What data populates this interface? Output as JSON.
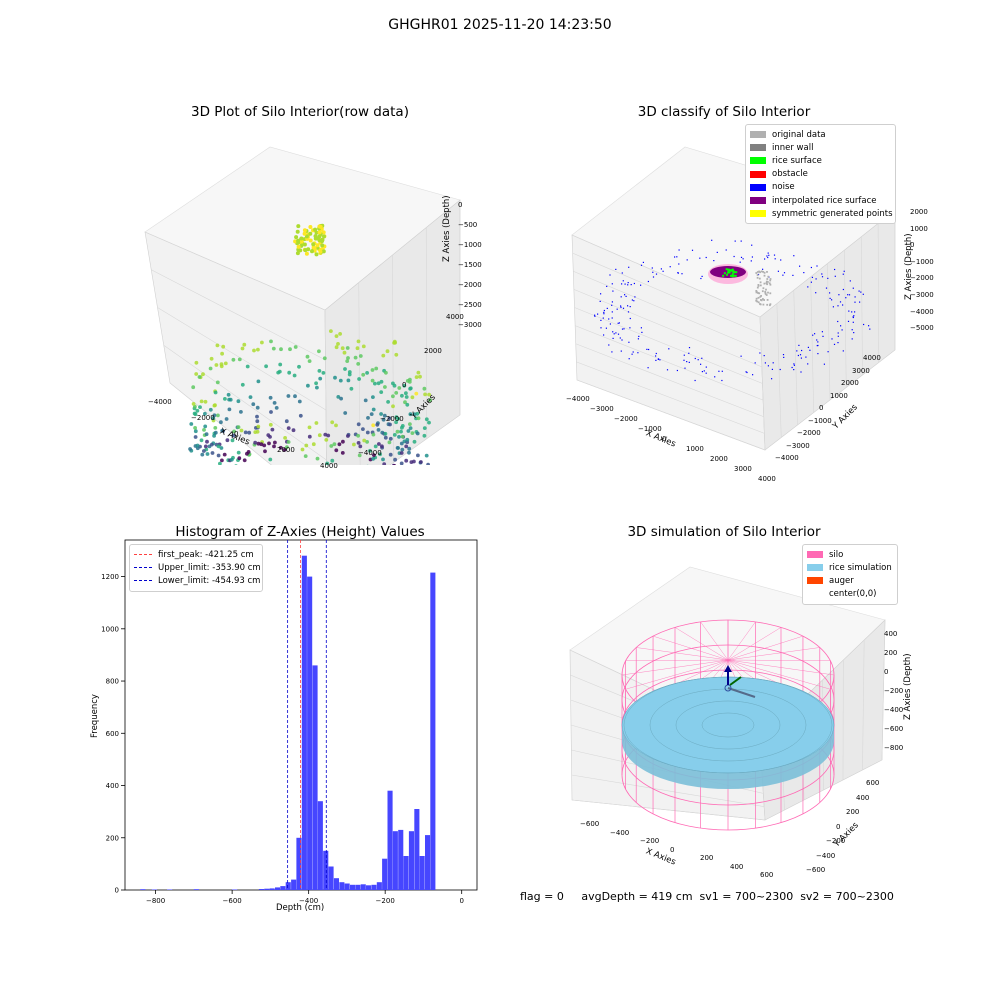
{
  "suptitle": "GHGHR01 2025-11-20 14:23:50",
  "footer_text": "flag = 0     avgDepth = 419 cm  sv1 = 700~2300  sv2 = 700~2300",
  "colors": {
    "hist_bar": "#4646ff",
    "peak_line": "#ff4040",
    "limit_line": "#0000cc",
    "silo": "#ff69b4",
    "rice_simulation": "#87ceeb",
    "auger": "#ff4500"
  },
  "chart_data": [
    {
      "type": "scatter",
      "title": "3D Plot of Silo Interior(row data)",
      "xlabel": "X Axies",
      "ylabel": "Y Axies",
      "zlabel": "Z Axies (Depth)",
      "x_ticks": [
        "−4000",
        "−2000",
        "0",
        "2000",
        "4000"
      ],
      "y_ticks": [
        "−4000",
        "−2000",
        "0",
        "2000",
        "4000"
      ],
      "z_ticks": [
        "0",
        "−500",
        "−1000",
        "−1500",
        "−2000",
        "−2500",
        "−3000"
      ],
      "colormap": "viridis",
      "zlim": [
        -3300,
        0
      ]
    },
    {
      "type": "scatter",
      "title": "3D classify of Silo Interior",
      "xlabel": "X Axies",
      "ylabel": "Y Axies",
      "zlabel": "Z Axies (Depth)",
      "x_ticks": [
        "−4000",
        "−3000",
        "−2000",
        "−1000",
        "0",
        "1000",
        "2000",
        "3000",
        "4000"
      ],
      "y_ticks": [
        "−4000",
        "−3000",
        "−2000",
        "−1000",
        "0",
        "1000",
        "2000",
        "3000",
        "4000"
      ],
      "z_ticks": [
        "2000",
        "1000",
        "0",
        "−1000",
        "−2000",
        "−3000",
        "−4000",
        "−5000"
      ],
      "legend_position": "top-right",
      "legend": [
        {
          "label": "original data",
          "color": "#b0b0b0"
        },
        {
          "label": "inner wall",
          "color": "#808080"
        },
        {
          "label": "rice surface",
          "color": "#00ff00"
        },
        {
          "label": "obstacle",
          "color": "#ff0000"
        },
        {
          "label": "noise",
          "color": "#0000ff"
        },
        {
          "label": "interpolated rice surface",
          "color": "#800080"
        },
        {
          "label": "symmetric generated points",
          "color": "#ffff00"
        }
      ]
    },
    {
      "type": "bar",
      "title": "Histogram of Z-Axies (Height) Values",
      "xlabel": "Depth (cm)",
      "ylabel": "Frequency",
      "xlim": [
        -880,
        40
      ],
      "ylim": [
        0,
        1340
      ],
      "x_ticks": [
        -800,
        -600,
        -400,
        -200,
        0
      ],
      "y_ticks": [
        0,
        200,
        400,
        600,
        800,
        1000,
        1200
      ],
      "bin_width": 14,
      "bins": [
        {
          "x": -840,
          "value": 3
        },
        {
          "x": -810,
          "value": 2
        },
        {
          "x": -770,
          "value": 2
        },
        {
          "x": -700,
          "value": 3
        },
        {
          "x": -600,
          "value": 2
        },
        {
          "x": -530,
          "value": 4
        },
        {
          "x": -516,
          "value": 5
        },
        {
          "x": -502,
          "value": 6
        },
        {
          "x": -488,
          "value": 10
        },
        {
          "x": -474,
          "value": 15
        },
        {
          "x": -460,
          "value": 30
        },
        {
          "x": -446,
          "value": 40
        },
        {
          "x": -432,
          "value": 200
        },
        {
          "x": -418,
          "value": 1280
        },
        {
          "x": -404,
          "value": 1200
        },
        {
          "x": -390,
          "value": 860
        },
        {
          "x": -376,
          "value": 340
        },
        {
          "x": -362,
          "value": 150
        },
        {
          "x": -348,
          "value": 90
        },
        {
          "x": -334,
          "value": 45
        },
        {
          "x": -320,
          "value": 30
        },
        {
          "x": -306,
          "value": 25
        },
        {
          "x": -292,
          "value": 20
        },
        {
          "x": -278,
          "value": 20
        },
        {
          "x": -264,
          "value": 22
        },
        {
          "x": -250,
          "value": 18
        },
        {
          "x": -236,
          "value": 20
        },
        {
          "x": -222,
          "value": 30
        },
        {
          "x": -208,
          "value": 120
        },
        {
          "x": -194,
          "value": 380
        },
        {
          "x": -180,
          "value": 225
        },
        {
          "x": -166,
          "value": 230
        },
        {
          "x": -152,
          "value": 130
        },
        {
          "x": -138,
          "value": 225
        },
        {
          "x": -124,
          "value": 310
        },
        {
          "x": -110,
          "value": 130
        },
        {
          "x": -96,
          "value": 210
        },
        {
          "x": -82,
          "value": 1215
        }
      ],
      "vlines": [
        {
          "label": "first_peak: -421.25 cm",
          "x": -421.25,
          "color": "#ff4040"
        },
        {
          "label": "Upper_limit: -353.90 cm",
          "x": -353.9,
          "color": "#0000cc"
        },
        {
          "label": "Lower_limit: -454.93 cm",
          "x": -454.93,
          "color": "#0000cc"
        }
      ],
      "legend_position": "top-left"
    },
    {
      "type": "scatter",
      "title": "3D simulation of Silo Interior",
      "xlabel": "X Axies",
      "ylabel": "Y Axies",
      "zlabel": "Z Axies (Depth)",
      "x_ticks": [
        "−600",
        "−400",
        "−200",
        "0",
        "200",
        "400",
        "600"
      ],
      "y_ticks": [
        "600",
        "400",
        "200",
        "0",
        "−200",
        "−400",
        "−600"
      ],
      "z_ticks": [
        "400",
        "200",
        "0",
        "−200",
        "−400",
        "−600",
        "−800"
      ],
      "legend_position": "top-right",
      "legend": [
        {
          "label": "silo",
          "color": "#ff69b4"
        },
        {
          "label": "rice simulation",
          "color": "#87ceeb"
        },
        {
          "label": "auger",
          "color": "#ff4500"
        },
        {
          "label": "center(0,0)",
          "color": ""
        }
      ]
    }
  ]
}
